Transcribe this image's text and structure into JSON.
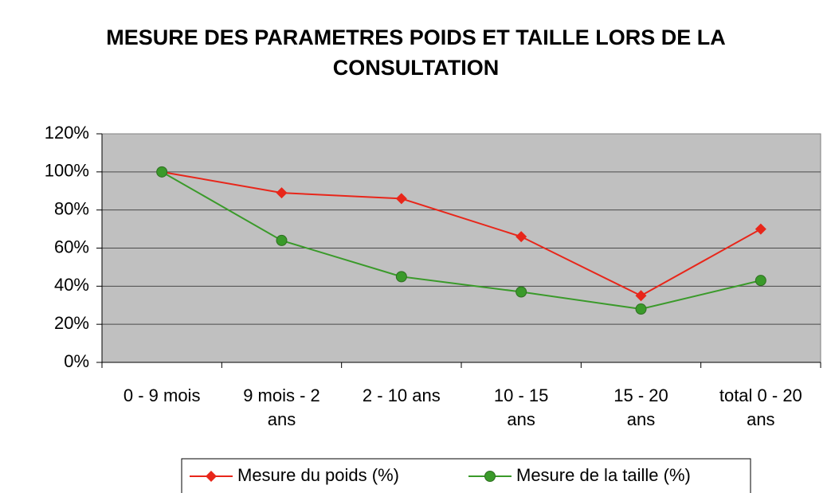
{
  "chart_data": {
    "type": "line",
    "title": "MESURE DES PARAMETRES POIDS ET TAILLE LORS DE LA CONSULTATION",
    "categories": [
      "0 - 9 mois",
      "9 mois - 2 ans",
      "2 - 10 ans",
      "10 - 15 ans",
      "15 - 20 ans",
      "total 0 - 20 ans"
    ],
    "series": [
      {
        "name": "Mesure du poids (%)",
        "color": "#e8261a",
        "marker": "diamond",
        "values": [
          100,
          89,
          86,
          66,
          35,
          70
        ]
      },
      {
        "name": "Mesure de la taille (%)",
        "color": "#3a9a2a",
        "marker": "circle",
        "values": [
          100,
          64,
          45,
          37,
          28,
          43
        ]
      }
    ],
    "ylim": [
      0,
      120
    ],
    "yticks": [
      {
        "value": 0,
        "label": "0%"
      },
      {
        "value": 20,
        "label": "20%"
      },
      {
        "value": 40,
        "label": "40%"
      },
      {
        "value": 60,
        "label": "60%"
      },
      {
        "value": 80,
        "label": "80%"
      },
      {
        "value": 100,
        "label": "100%"
      },
      {
        "value": 120,
        "label": "120%"
      }
    ],
    "grid": true,
    "legend": "bottom"
  }
}
